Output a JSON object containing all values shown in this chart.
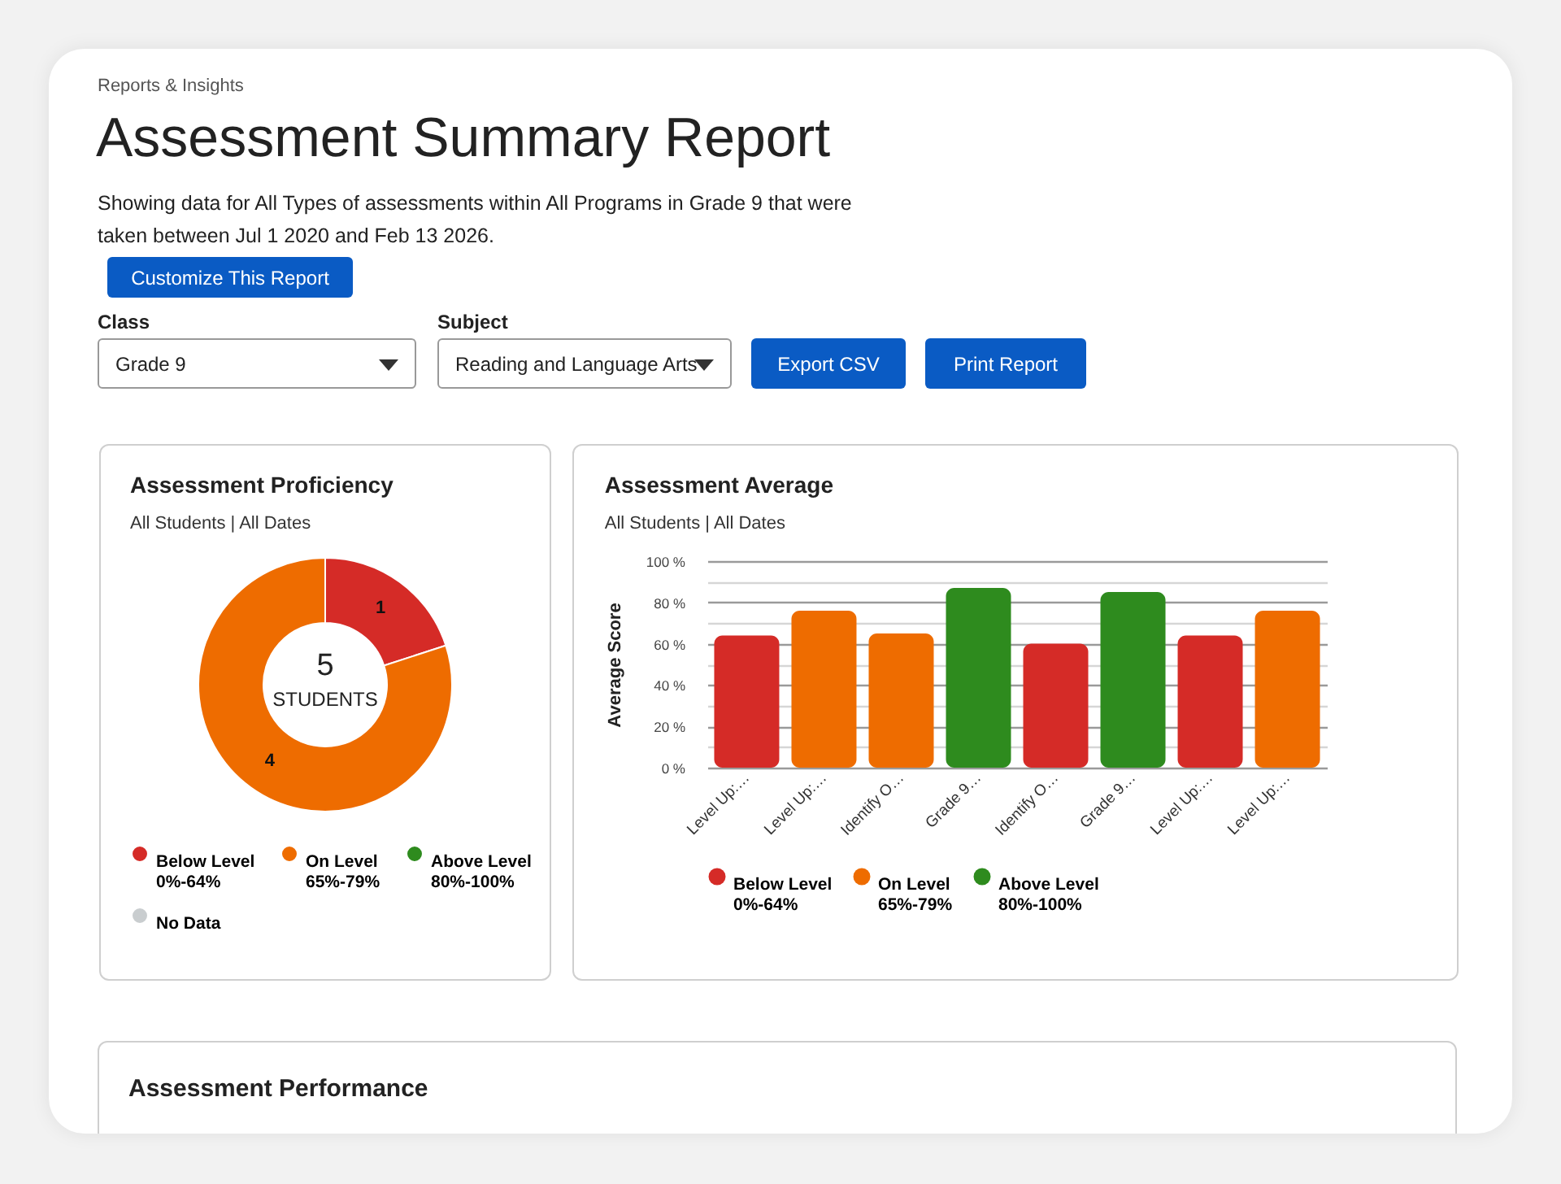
{
  "chart_data": [
    {
      "type": "other",
      "title": "Assessment Summary Report",
      "subtitle": "Reports & Insights",
      "annotations": [
        "Showing data for All Types of assessments within All Programs in Grade 9 that were taken between Jul 1 2020 and Feb 13 2026.",
        "Customize This Report",
        "Class",
        "Grade 9",
        "Subject",
        "Reading and Language Arts",
        "Export CSV",
        "Print Report",
        "Assessment Performance"
      ]
    },
    {
      "type": "donut",
      "title": "Assessment Proficiency",
      "subtitle": "All Students | All Dates",
      "categories": [
        "Below Level",
        "On Level",
        "Above Level",
        "No Data"
      ],
      "values": [
        1,
        4,
        0,
        0
      ],
      "colors": [
        "#d52b27",
        "#ee6c00",
        "#2e8b1e",
        "#c9cdcf"
      ],
      "value_labels": [
        "1",
        "4",
        null,
        null
      ],
      "legend": "bottom",
      "annotations": [
        "5",
        "STUDENTS",
        "0%-64%",
        "65%-79%",
        "80%-100%"
      ]
    },
    {
      "type": "bar",
      "title": "Assessment Average",
      "subtitle": "All Students | All Dates",
      "ylabel": "Average Score",
      "categories": [
        "Level Up:…",
        "Level Up:…",
        "Identify O…",
        "Grade 9…",
        "Identify O…",
        "Grade 9…",
        "Level Up:…",
        "Level Up:…"
      ],
      "series": [
        {
          "name": "Below Level",
          "color": "#d52b27",
          "values": [
            64,
            null,
            null,
            null,
            60,
            null,
            64,
            null
          ]
        },
        {
          "name": "On Level",
          "color": "#ee6c00",
          "values": [
            null,
            76,
            65,
            null,
            null,
            null,
            null,
            76
          ]
        },
        {
          "name": "Above Level",
          "color": "#2e8b1e",
          "values": [
            null,
            null,
            null,
            87,
            null,
            85,
            null,
            null
          ]
        }
      ],
      "ylim": [
        0,
        100
      ],
      "yticks": [
        {
          "value": 0,
          "label": "0 %"
        },
        {
          "value": 10,
          "label": null
        },
        {
          "value": 20,
          "label": "20 %"
        },
        {
          "value": 30,
          "label": null
        },
        {
          "value": 40,
          "label": "40 %"
        },
        {
          "value": 50,
          "label": null
        },
        {
          "value": 60,
          "label": "60 %"
        },
        {
          "value": 70,
          "label": null
        },
        {
          "value": 80,
          "label": "80 %"
        },
        {
          "value": 90,
          "label": null
        },
        {
          "value": 100,
          "label": "100 %"
        }
      ],
      "grid": true,
      "legend": "bottom",
      "annotations": [
        "0%-64%",
        "65%-79%",
        "80%-100%"
      ]
    }
  ]
}
